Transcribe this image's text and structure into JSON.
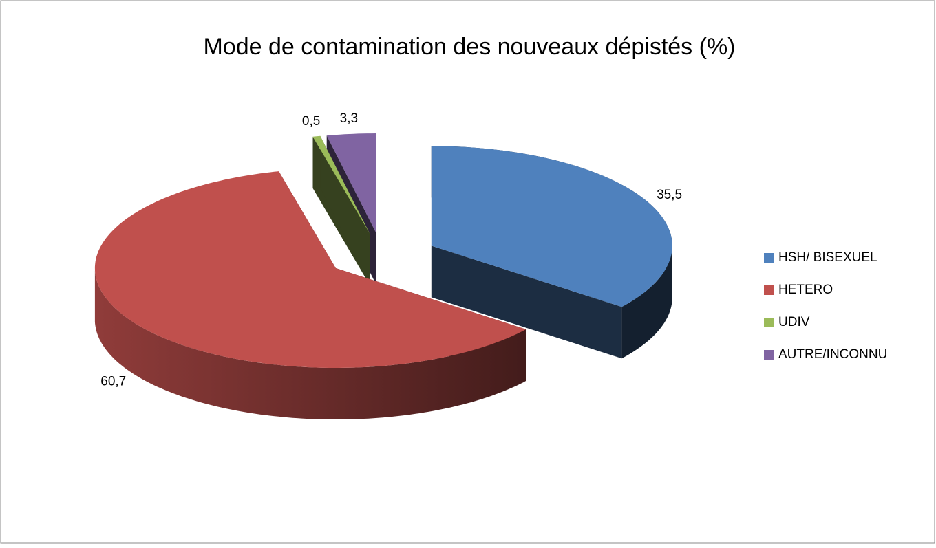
{
  "chart_data": {
    "type": "pie3d",
    "title": "Mode de contamination des nouveaux dépistés (%)",
    "categories": [
      "HSH/ BISEXUEL",
      "HETERO",
      "UDIV",
      "AUTRE/INCONNU"
    ],
    "values": [
      35.5,
      60.7,
      0.5,
      3.3
    ],
    "value_labels": [
      "35,5",
      "60,7",
      "0,5",
      "3,3"
    ],
    "colors": [
      "#4f81bd",
      "#c0504d",
      "#9bbb59",
      "#8064a2"
    ],
    "legend": "right"
  }
}
